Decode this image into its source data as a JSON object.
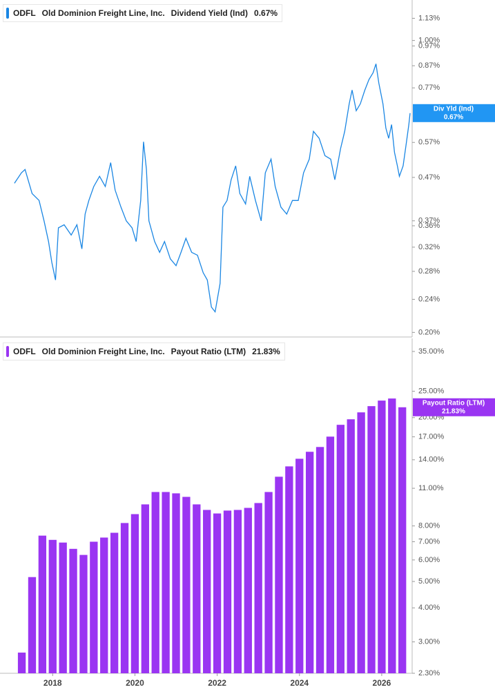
{
  "chart_data": [
    {
      "type": "line",
      "ticker": "ODFL",
      "company": "Old Dominion Freight Line, Inc.",
      "log": true,
      "x": [
        2017.07,
        2017.24,
        2017.33,
        2017.5,
        2017.67,
        2017.79,
        2017.9,
        2017.98,
        2018.07,
        2018.14,
        2018.28,
        2018.45,
        2018.59,
        2018.71,
        2018.79,
        2018.88,
        2019.0,
        2019.14,
        2019.28,
        2019.41,
        2019.52,
        2019.66,
        2019.79,
        2019.93,
        2020.03,
        2020.14,
        2020.21,
        2020.28,
        2020.34,
        2020.48,
        2020.6,
        2020.72,
        2020.86,
        2021.0,
        2021.12,
        2021.24,
        2021.38,
        2021.52,
        2021.66,
        2021.76,
        2021.86,
        2021.95,
        2022.07,
        2022.14,
        2022.24,
        2022.34,
        2022.45,
        2022.55,
        2022.69,
        2022.79,
        2022.93,
        2023.07,
        2023.17,
        2023.31,
        2023.41,
        2023.55,
        2023.69,
        2023.83,
        2023.97,
        2024.1,
        2024.24,
        2024.34,
        2024.48,
        2024.62,
        2024.76,
        2024.86,
        2025.0,
        2025.1,
        2025.21,
        2025.28,
        2025.38,
        2025.48,
        2025.59,
        2025.69,
        2025.79,
        2025.86,
        2025.93,
        2026.03,
        2026.1,
        2026.17,
        2026.24,
        2026.31,
        2026.38,
        2026.43,
        2026.52,
        2026.59,
        2026.66,
        2026.69
      ],
      "series": [
        {
          "name": "Dividend Yield (Ind)",
          "color": "#1a86e3",
          "values": [
            0.455,
            0.482,
            0.491,
            0.43,
            0.414,
            0.37,
            0.33,
            0.294,
            0.267,
            0.356,
            0.362,
            0.342,
            0.362,
            0.317,
            0.384,
            0.414,
            0.447,
            0.473,
            0.447,
            0.51,
            0.438,
            0.399,
            0.37,
            0.356,
            0.33,
            0.414,
            0.572,
            0.491,
            0.37,
            0.33,
            0.311,
            0.33,
            0.3,
            0.289,
            0.311,
            0.336,
            0.311,
            0.306,
            0.278,
            0.267,
            0.23,
            0.224,
            0.262,
            0.399,
            0.414,
            0.464,
            0.501,
            0.43,
            0.406,
            0.473,
            0.414,
            0.37,
            0.482,
            0.52,
            0.447,
            0.399,
            0.384,
            0.414,
            0.414,
            0.482,
            0.52,
            0.606,
            0.583,
            0.53,
            0.52,
            0.464,
            0.551,
            0.606,
            0.705,
            0.761,
            0.679,
            0.705,
            0.761,
            0.806,
            0.837,
            0.879,
            0.791,
            0.705,
            0.617,
            0.583,
            0.629,
            0.54,
            0.501,
            0.473,
            0.501,
            0.561,
            0.629,
            0.67
          ]
        }
      ],
      "ylim": [
        0.195,
        1.25
      ],
      "yticks": [
        {
          "value": 1.13,
          "label": "1.13%"
        },
        {
          "value": 1.0,
          "label": "1.00%"
        },
        {
          "value": 0.97,
          "label": "0.97%"
        },
        {
          "value": 0.87,
          "label": "0.87%"
        },
        {
          "value": 0.77,
          "label": "0.77%"
        },
        {
          "value": 0.57,
          "label": "0.57%"
        },
        {
          "value": 0.47,
          "label": "0.47%"
        },
        {
          "value": 0.37,
          "label": "0.37%"
        },
        {
          "value": 0.36,
          "label": "0.36%"
        },
        {
          "value": 0.32,
          "label": "0.32%"
        },
        {
          "value": 0.28,
          "label": "0.28%"
        },
        {
          "value": 0.24,
          "label": "0.24%"
        },
        {
          "value": 0.2,
          "label": "0.20%"
        }
      ],
      "xlim": [
        2016.72,
        2026.74
      ],
      "callout": {
        "name": "Div Yld (Ind)",
        "value": 0.67,
        "label": "0.67%"
      }
    },
    {
      "type": "bar",
      "ticker": "ODFL",
      "company": "Old Dominion Freight Line, Inc.",
      "log": true,
      "x": [
        2017.25,
        2017.5,
        2017.75,
        2018.0,
        2018.25,
        2018.5,
        2018.75,
        2019.0,
        2019.25,
        2019.5,
        2019.75,
        2020.0,
        2020.25,
        2020.5,
        2020.75,
        2021.0,
        2021.25,
        2021.5,
        2021.75,
        2022.0,
        2022.25,
        2022.5,
        2022.75,
        2023.0,
        2023.25,
        2023.5,
        2023.75,
        2024.0,
        2024.25,
        2024.5,
        2024.75,
        2025.0,
        2025.25,
        2025.5,
        2025.75,
        2026.0,
        2026.25,
        2026.5
      ],
      "series": [
        {
          "name": "Payout Ratio (LTM)",
          "color": "#9a35f2",
          "values": [
            2.74,
            5.19,
            7.37,
            7.11,
            6.95,
            6.59,
            6.26,
            7.0,
            7.25,
            7.55,
            8.2,
            8.84,
            9.6,
            10.66,
            10.66,
            10.54,
            10.23,
            9.6,
            9.16,
            8.89,
            9.11,
            9.16,
            9.32,
            9.71,
            10.66,
            12.13,
            13.24,
            14.12,
            14.98,
            15.6,
            17.03,
            18.82,
            19.72,
            20.91,
            22.04,
            23.1,
            23.51,
            21.83
          ]
        }
      ],
      "ylim": [
        2.3,
        39.1
      ],
      "yticks": [
        {
          "value": 35,
          "label": "35.00%"
        },
        {
          "value": 25,
          "label": "25.00%"
        },
        {
          "value": 20,
          "label": "20.00%"
        },
        {
          "value": 17,
          "label": "17.00%"
        },
        {
          "value": 14,
          "label": "14.00%"
        },
        {
          "value": 11,
          "label": "11.00%"
        },
        {
          "value": 8,
          "label": "8.00%"
        },
        {
          "value": 7,
          "label": "7.00%"
        },
        {
          "value": 6,
          "label": "6.00%"
        },
        {
          "value": 5,
          "label": "5.00%"
        },
        {
          "value": 4,
          "label": "4.00%"
        },
        {
          "value": 3,
          "label": "3.00%"
        },
        {
          "value": 2.3,
          "label": "2.30%"
        }
      ],
      "xlim": [
        2016.72,
        2026.74
      ],
      "xticks": [
        2018,
        2020,
        2022,
        2024,
        2026
      ],
      "callout": {
        "value": 21.83,
        "label": "21.83%"
      }
    }
  ]
}
